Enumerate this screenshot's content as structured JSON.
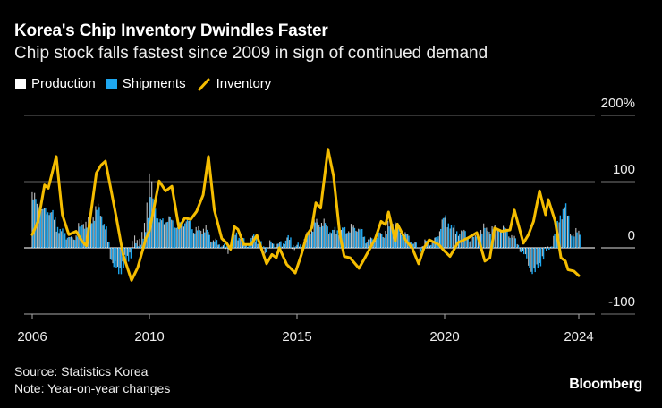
{
  "title": "Korea's Chip Inventory Dwindles Faster",
  "subtitle": "Chip stock falls fastest since 2009 in sign of continued demand",
  "source": "Source: Statistics Korea",
  "note": "Note: Year-on-year changes",
  "brand": "Bloomberg",
  "colors": {
    "production": "#ffffff",
    "shipments": "#1ea7ef",
    "inventory": "#f5bd00",
    "grid": "#666666"
  },
  "chart_data": {
    "type": "bar+line",
    "title": "Korea's Chip Inventory Dwindles Faster",
    "ylabel": "",
    "xlabel": "",
    "ylim": [
      -100,
      200
    ],
    "xlim": [
      2006,
      2024
    ],
    "grid": true,
    "legend_position": "top-left",
    "legend": [
      {
        "name": "Production",
        "kind": "bar"
      },
      {
        "name": "Shipments",
        "kind": "bar"
      },
      {
        "name": "Inventory",
        "kind": "line"
      }
    ],
    "y_ticks": [
      {
        "value": 200,
        "label": "200%"
      },
      {
        "value": 100,
        "label": "100"
      },
      {
        "value": 0,
        "label": "0"
      },
      {
        "value": -100,
        "label": "-100"
      }
    ],
    "x_ticks": [
      {
        "value": 2006,
        "label": "2006"
      },
      {
        "value": 2010,
        "label": "2010"
      },
      {
        "value": 2015,
        "label": "2015"
      },
      {
        "value": 2020,
        "label": "2020"
      },
      {
        "value": 2024,
        "label": "2024"
      }
    ],
    "series": [
      {
        "name": "Inventory",
        "type": "line",
        "points": [
          [
            2006.0,
            20
          ],
          [
            2006.2,
            40
          ],
          [
            2006.42,
            95
          ],
          [
            2006.55,
            90
          ],
          [
            2006.82,
            138
          ],
          [
            2007.03,
            50
          ],
          [
            2007.25,
            20
          ],
          [
            2007.5,
            25
          ],
          [
            2007.7,
            10
          ],
          [
            2007.85,
            3
          ],
          [
            2008.19,
            113
          ],
          [
            2008.35,
            125
          ],
          [
            2008.5,
            131
          ],
          [
            2008.87,
            46
          ],
          [
            2009.1,
            -10
          ],
          [
            2009.39,
            -49
          ],
          [
            2009.6,
            -30
          ],
          [
            2009.88,
            14
          ],
          [
            2010.0,
            25
          ],
          [
            2010.33,
            101
          ],
          [
            2010.55,
            86
          ],
          [
            2010.76,
            93
          ],
          [
            2011.0,
            30
          ],
          [
            2011.2,
            45
          ],
          [
            2011.4,
            43
          ],
          [
            2011.6,
            55
          ],
          [
            2011.82,
            80
          ],
          [
            2012.0,
            138
          ],
          [
            2012.2,
            57
          ],
          [
            2012.45,
            14
          ],
          [
            2012.6,
            8
          ],
          [
            2012.75,
            -2
          ],
          [
            2012.88,
            32
          ],
          [
            2013.0,
            28
          ],
          [
            2013.2,
            5
          ],
          [
            2013.45,
            5
          ],
          [
            2013.64,
            19
          ],
          [
            2013.97,
            -24
          ],
          [
            2014.15,
            -10
          ],
          [
            2014.3,
            -15
          ],
          [
            2014.4,
            0
          ],
          [
            2014.65,
            -25
          ],
          [
            2014.94,
            -38
          ],
          [
            2015.15,
            -10
          ],
          [
            2015.33,
            19
          ],
          [
            2015.5,
            30
          ],
          [
            2015.64,
            68
          ],
          [
            2015.8,
            60
          ],
          [
            2016.05,
            149
          ],
          [
            2016.24,
            108
          ],
          [
            2016.45,
            20
          ],
          [
            2016.6,
            -13
          ],
          [
            2016.8,
            -15
          ],
          [
            2017.1,
            -31
          ],
          [
            2017.3,
            -15
          ],
          [
            2017.65,
            14
          ],
          [
            2017.85,
            40
          ],
          [
            2018.0,
            35
          ],
          [
            2018.1,
            54
          ],
          [
            2018.33,
            10
          ],
          [
            2018.4,
            36
          ],
          [
            2018.7,
            10
          ],
          [
            2018.9,
            0
          ],
          [
            2019.12,
            -24
          ],
          [
            2019.3,
            0
          ],
          [
            2019.48,
            12
          ],
          [
            2019.8,
            5
          ],
          [
            2020.0,
            -5
          ],
          [
            2020.16,
            -13
          ],
          [
            2020.4,
            8
          ],
          [
            2020.7,
            15
          ],
          [
            2020.96,
            23
          ],
          [
            2021.2,
            -20
          ],
          [
            2021.35,
            -15
          ],
          [
            2021.49,
            30
          ],
          [
            2021.7,
            25
          ],
          [
            2021.95,
            27
          ],
          [
            2022.08,
            57
          ],
          [
            2022.35,
            7
          ],
          [
            2022.5,
            20
          ],
          [
            2022.65,
            40
          ],
          [
            2022.83,
            86
          ],
          [
            2023.01,
            50
          ],
          [
            2023.09,
            73
          ],
          [
            2023.3,
            40
          ],
          [
            2023.47,
            -15
          ],
          [
            2023.6,
            -20
          ],
          [
            2023.68,
            -33
          ],
          [
            2023.85,
            -35
          ],
          [
            2024.0,
            -42
          ]
        ]
      },
      {
        "name": "Shipments",
        "type": "bar",
        "points": [
          [
            2006.0,
            70
          ],
          [
            2006.3,
            60
          ],
          [
            2006.7,
            50
          ],
          [
            2007.0,
            25
          ],
          [
            2007.3,
            10
          ],
          [
            2007.6,
            30
          ],
          [
            2007.9,
            30
          ],
          [
            2008.2,
            60
          ],
          [
            2008.5,
            30
          ],
          [
            2008.7,
            -20
          ],
          [
            2008.9,
            -45
          ],
          [
            2009.2,
            -20
          ],
          [
            2009.5,
            0
          ],
          [
            2009.8,
            15
          ],
          [
            2010.0,
            75
          ],
          [
            2010.3,
            45
          ],
          [
            2010.6,
            40
          ],
          [
            2010.9,
            35
          ],
          [
            2011.2,
            40
          ],
          [
            2011.6,
            25
          ],
          [
            2012.0,
            20
          ],
          [
            2012.3,
            5
          ],
          [
            2012.6,
            0
          ],
          [
            2012.9,
            20
          ],
          [
            2013.2,
            10
          ],
          [
            2013.6,
            15
          ],
          [
            2013.9,
            0
          ],
          [
            2014.3,
            5
          ],
          [
            2014.6,
            15
          ],
          [
            2014.9,
            5
          ],
          [
            2015.3,
            10
          ],
          [
            2015.6,
            40
          ],
          [
            2015.9,
            30
          ],
          [
            2016.2,
            30
          ],
          [
            2016.5,
            25
          ],
          [
            2016.8,
            30
          ],
          [
            2017.1,
            25
          ],
          [
            2017.5,
            10
          ],
          [
            2017.8,
            20
          ],
          [
            2018.2,
            30
          ],
          [
            2018.5,
            25
          ],
          [
            2018.8,
            10
          ],
          [
            2019.2,
            0
          ],
          [
            2019.6,
            10
          ],
          [
            2020.0,
            45
          ],
          [
            2020.2,
            35
          ],
          [
            2020.5,
            20
          ],
          [
            2020.8,
            15
          ],
          [
            2021.1,
            20
          ],
          [
            2021.4,
            30
          ],
          [
            2021.7,
            25
          ],
          [
            2022.0,
            20
          ],
          [
            2022.2,
            0
          ],
          [
            2022.4,
            -20
          ],
          [
            2022.7,
            -40
          ],
          [
            2022.9,
            -20
          ],
          [
            2023.1,
            0
          ],
          [
            2023.3,
            30
          ],
          [
            2023.5,
            60
          ],
          [
            2023.6,
            65
          ],
          [
            2023.75,
            25
          ],
          [
            2024.0,
            15
          ]
        ]
      },
      {
        "name": "Production",
        "type": "bar",
        "points": [
          [
            2006.0,
            80
          ],
          [
            2006.3,
            60
          ],
          [
            2006.7,
            45
          ],
          [
            2007.0,
            20
          ],
          [
            2007.3,
            10
          ],
          [
            2007.6,
            35
          ],
          [
            2007.9,
            40
          ],
          [
            2008.2,
            65
          ],
          [
            2008.5,
            25
          ],
          [
            2008.7,
            -15
          ],
          [
            2008.9,
            -35
          ],
          [
            2009.2,
            -10
          ],
          [
            2009.5,
            10
          ],
          [
            2009.8,
            25
          ],
          [
            2010.0,
            110
          ],
          [
            2010.3,
            40
          ],
          [
            2010.6,
            40
          ],
          [
            2010.9,
            35
          ],
          [
            2011.2,
            35
          ],
          [
            2011.6,
            30
          ],
          [
            2012.0,
            25
          ],
          [
            2012.3,
            5
          ],
          [
            2012.6,
            -5
          ],
          [
            2012.9,
            15
          ],
          [
            2013.2,
            10
          ],
          [
            2013.6,
            10
          ],
          [
            2013.9,
            0
          ],
          [
            2014.3,
            5
          ],
          [
            2014.6,
            10
          ],
          [
            2014.9,
            0
          ],
          [
            2015.3,
            10
          ],
          [
            2015.6,
            45
          ],
          [
            2015.9,
            35
          ],
          [
            2016.2,
            25
          ],
          [
            2016.5,
            20
          ],
          [
            2016.8,
            35
          ],
          [
            2017.1,
            25
          ],
          [
            2017.5,
            10
          ],
          [
            2017.8,
            20
          ],
          [
            2018.2,
            40
          ],
          [
            2018.5,
            30
          ],
          [
            2018.8,
            10
          ],
          [
            2019.2,
            0
          ],
          [
            2019.6,
            10
          ],
          [
            2020.0,
            40
          ],
          [
            2020.2,
            30
          ],
          [
            2020.5,
            20
          ],
          [
            2020.8,
            15
          ],
          [
            2021.1,
            25
          ],
          [
            2021.4,
            35
          ],
          [
            2021.7,
            25
          ],
          [
            2022.0,
            25
          ],
          [
            2022.2,
            0
          ],
          [
            2022.4,
            -15
          ],
          [
            2022.7,
            -35
          ],
          [
            2022.9,
            -15
          ],
          [
            2023.1,
            5
          ],
          [
            2023.3,
            25
          ],
          [
            2023.5,
            45
          ],
          [
            2023.6,
            60
          ],
          [
            2023.75,
            30
          ],
          [
            2024.0,
            20
          ]
        ]
      }
    ]
  }
}
